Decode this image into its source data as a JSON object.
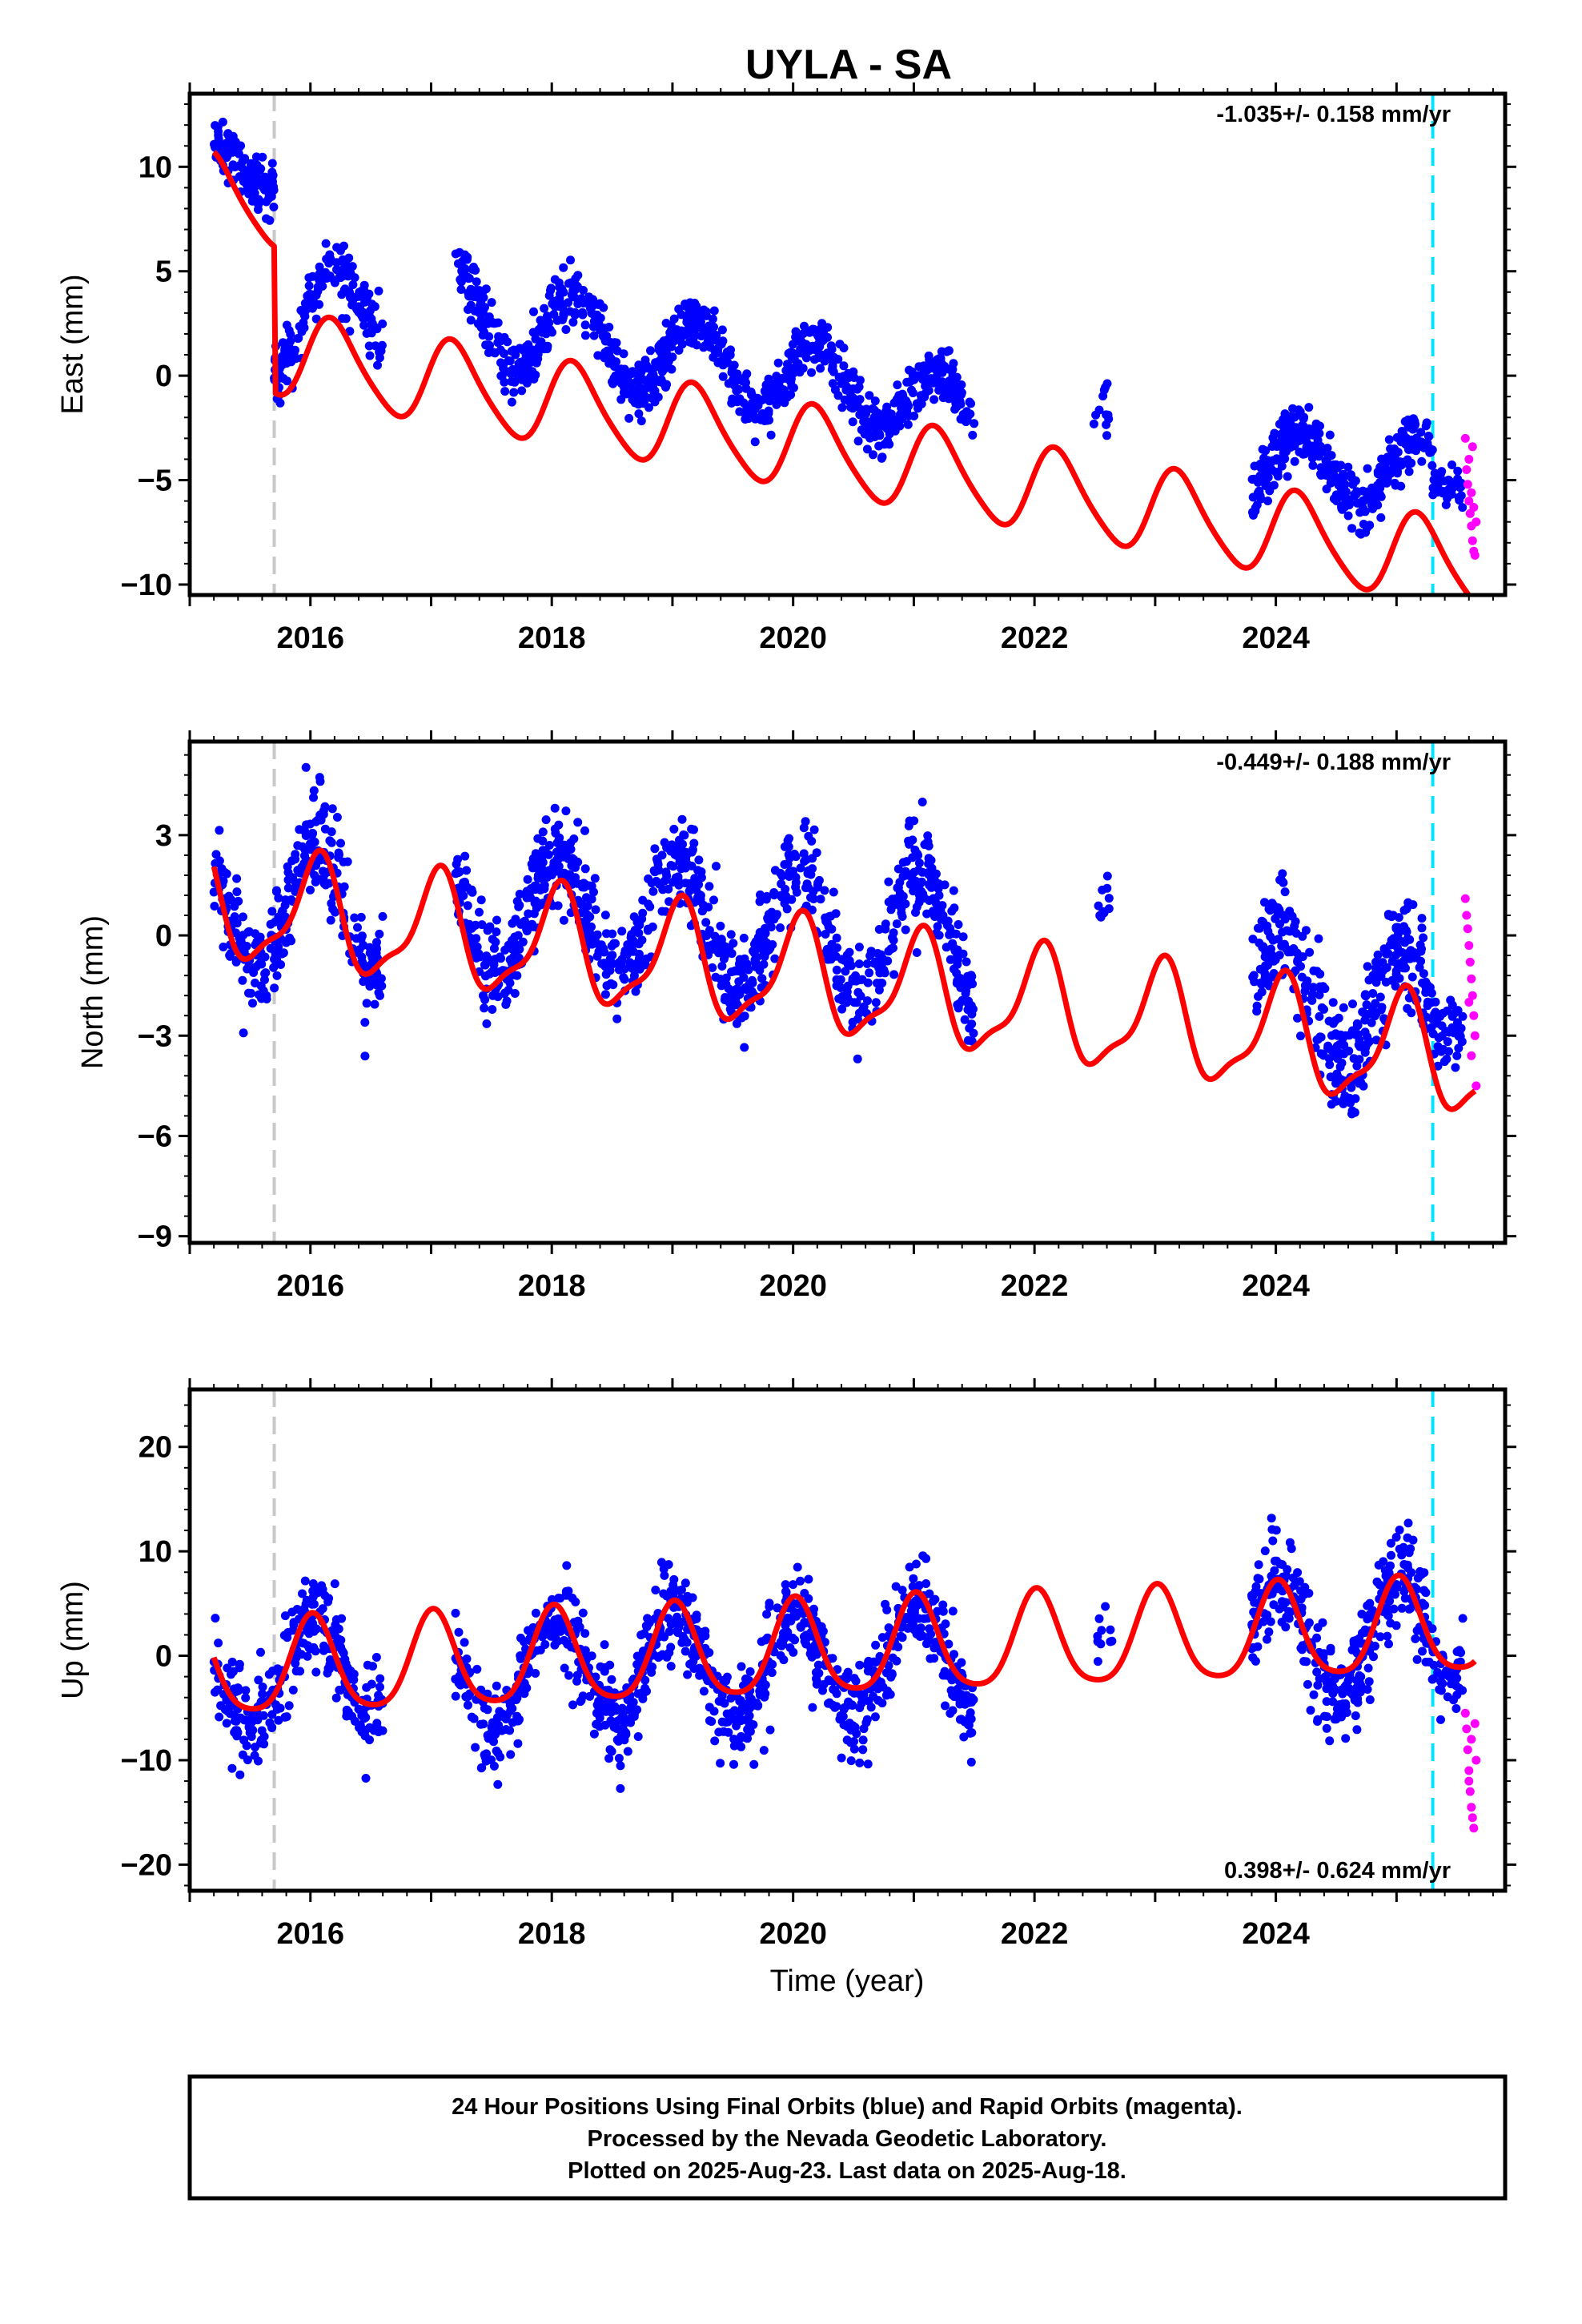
{
  "chart_data": [
    {
      "type": "scatter",
      "panel": "east",
      "title": "UYLA - SA",
      "ylabel": "East (mm)",
      "rate_label": "-1.035+/- 0.158 mm/yr",
      "ylim": [
        -10.5,
        13.5
      ],
      "yticks": [
        10,
        5,
        0,
        -5,
        -10
      ],
      "xlim": [
        2015.0,
        2025.9
      ],
      "xticks": [
        "2016",
        "2018",
        "2020",
        "2022",
        "2024"
      ],
      "markers": {
        "equipment_change": 2015.7,
        "rapid_start": 2025.3
      },
      "series": [
        {
          "color": "#0000ff",
          "segments": [
            {
              "start": 2015.2,
              "end": 2015.7,
              "a": 10.0,
              "b": 1.4,
              "amp": 1.4,
              "noise": 1.2,
              "n": 120
            },
            {
              "start": 2015.7,
              "end": 2016.6,
              "a": 2.8,
              "b": 1.2,
              "amp": 2.0,
              "noise": 1.4,
              "n": 180
            },
            {
              "start": 2017.2,
              "end": 2018.1,
              "a": 2.5,
              "b": -1.3,
              "amp": 2.1,
              "noise": 1.3,
              "n": 200
            },
            {
              "start": 2018.1,
              "end": 2019.0,
              "a": 1.5,
              "b": -1.2,
              "amp": 2.0,
              "noise": 1.3,
              "n": 200
            },
            {
              "start": 2019.0,
              "end": 2020.0,
              "a": 0.5,
              "b": -1.1,
              "amp": 1.8,
              "noise": 1.2,
              "n": 210
            },
            {
              "start": 2020.0,
              "end": 2021.0,
              "a": -0.5,
              "b": -1.0,
              "amp": 1.8,
              "noise": 1.2,
              "n": 210
            },
            {
              "start": 2021.0,
              "end": 2021.5,
              "a": -1.5,
              "b": -0.8,
              "amp": 1.5,
              "noise": 1.1,
              "n": 110
            },
            {
              "start": 2022.48,
              "end": 2022.62,
              "a": -1.5,
              "b": 0,
              "amp": 0,
              "noise": 1.3,
              "n": 12
            },
            {
              "start": 2023.8,
              "end": 2024.5,
              "a": -4.5,
              "b": 0,
              "amp": 1.8,
              "noise": 1.2,
              "n": 170
            },
            {
              "start": 2024.5,
              "end": 2025.3,
              "a": -4.6,
              "b": -0.5,
              "amp": 1.6,
              "noise": 1.2,
              "n": 170
            },
            {
              "start": 2025.3,
              "end": 2025.55,
              "a": -5.5,
              "b": 0,
              "amp": 0,
              "noise": 0.9,
              "n": 40
            }
          ]
        },
        {
          "color": "#ff00ff",
          "points": [
            [
              2025.57,
              -3.0
            ],
            [
              2025.58,
              -4.5
            ],
            [
              2025.59,
              -5.2
            ],
            [
              2025.6,
              -6.0
            ],
            [
              2025.61,
              -6.6
            ],
            [
              2025.62,
              -7.2
            ],
            [
              2025.63,
              -7.9
            ],
            [
              2025.64,
              -8.4
            ],
            [
              2025.65,
              -8.6
            ],
            [
              2025.62,
              -5.6
            ],
            [
              2025.6,
              -4.0
            ],
            [
              2025.63,
              -3.4
            ],
            [
              2025.66,
              -7.0
            ],
            [
              2025.64,
              -6.3
            ]
          ]
        },
        {
          "color": "#ff0000",
          "curve": {
            "x0": 2015.2,
            "x1": 2025.65,
            "a": 8.6,
            "b": 1.2,
            "harm": [
              [
                2.0,
                0.35
              ],
              [
                0.3,
                0.25
              ]
            ],
            "steps": [
              [
                2015.7,
                -7.0
              ]
            ],
            "rate": -1.035
          }
        }
      ]
    },
    {
      "type": "scatter",
      "panel": "north",
      "ylabel": "North (mm)",
      "rate_label": "-0.449+/- 0.188 mm/yr",
      "ylim": [
        -9.2,
        5.8
      ],
      "yticks": [
        3,
        0,
        -3,
        -6,
        -9
      ],
      "xlim": [
        2015.0,
        2025.9
      ],
      "xticks": [
        "2016",
        "2018",
        "2020",
        "2022",
        "2024"
      ],
      "markers": {
        "equipment_change": 2015.7,
        "rapid_start": 2025.3
      },
      "series": [
        {
          "color": "#0000ff",
          "segments": [
            {
              "start": 2015.2,
              "end": 2016.6,
              "a": 0.9,
              "b": -0.2,
              "amp": 2.0,
              "noise": 1.4,
              "n": 300
            },
            {
              "start": 2017.2,
              "end": 2019.0,
              "a": 0.6,
              "b": 0,
              "amp": 1.7,
              "noise": 1.3,
              "n": 400
            },
            {
              "start": 2019.0,
              "end": 2021.5,
              "a": 0.1,
              "b": -0.2,
              "amp": 1.8,
              "noise": 1.4,
              "n": 540
            },
            {
              "start": 2022.52,
              "end": 2022.62,
              "a": 1.0,
              "b": 0,
              "amp": 0,
              "noise": 0.8,
              "n": 10
            },
            {
              "start": 2023.8,
              "end": 2025.3,
              "a": -2.0,
              "b": -0.5,
              "amp": 1.8,
              "noise": 1.5,
              "n": 340
            },
            {
              "start": 2025.3,
              "end": 2025.55,
              "a": -3.0,
              "b": 0,
              "amp": 0,
              "noise": 1.0,
              "n": 40
            }
          ]
        },
        {
          "color": "#ff00ff",
          "points": [
            [
              2025.57,
              1.1
            ],
            [
              2025.58,
              0.6
            ],
            [
              2025.59,
              0.2
            ],
            [
              2025.6,
              -0.3
            ],
            [
              2025.61,
              -0.8
            ],
            [
              2025.62,
              -1.3
            ],
            [
              2025.63,
              -1.8
            ],
            [
              2025.64,
              -2.4
            ],
            [
              2025.65,
              -3.0
            ],
            [
              2025.62,
              -3.6
            ],
            [
              2025.66,
              -4.5
            ],
            [
              2025.6,
              -2.0
            ]
          ]
        },
        {
          "color": "#ff0000",
          "curve": {
            "x0": 2015.2,
            "x1": 2025.65,
            "a": 0.9,
            "b": 0.2,
            "harm": [
              [
                1.6,
                1.25
              ],
              [
                0.5,
                0.2
              ]
            ],
            "steps": [],
            "rate": -0.449
          }
        }
      ]
    },
    {
      "type": "scatter",
      "panel": "up",
      "ylabel": "Up (mm)",
      "rate_label": "0.398+/- 0.624 mm/yr",
      "xlabel": "Time (year)",
      "ylim": [
        -22.5,
        25.5
      ],
      "yticks": [
        20,
        10,
        0,
        -10,
        -20
      ],
      "xlim": [
        2015.0,
        2025.9
      ],
      "xticks": [
        "2016",
        "2018",
        "2020",
        "2022",
        "2024"
      ],
      "markers": {
        "equipment_change": 2015.7,
        "rapid_start": 2025.3
      },
      "series": [
        {
          "color": "#0000ff",
          "segments": [
            {
              "start": 2015.2,
              "end": 2016.6,
              "a": -1.5,
              "b": 0.6,
              "amp": 5.0,
              "noise": 4.0,
              "n": 300
            },
            {
              "start": 2017.2,
              "end": 2019.0,
              "a": -1.5,
              "b": 0.6,
              "amp": 5.3,
              "noise": 4.0,
              "n": 400
            },
            {
              "start": 2019.0,
              "end": 2021.5,
              "a": -0.8,
              "b": 0.5,
              "amp": 5.3,
              "noise": 4.0,
              "n": 540
            },
            {
              "start": 2022.52,
              "end": 2022.65,
              "a": 2.5,
              "b": 0,
              "amp": 0,
              "noise": 3.5,
              "n": 10
            },
            {
              "start": 2023.8,
              "end": 2025.3,
              "a": 2.0,
              "b": 0.3,
              "amp": 5.5,
              "noise": 4.5,
              "n": 340
            },
            {
              "start": 2025.3,
              "end": 2025.55,
              "a": -2.0,
              "b": 0,
              "amp": 0,
              "noise": 3.5,
              "n": 40
            }
          ]
        },
        {
          "color": "#ff00ff",
          "points": [
            [
              2025.57,
              -5.5
            ],
            [
              2025.58,
              -7.0
            ],
            [
              2025.59,
              -9.0
            ],
            [
              2025.6,
              -11.0
            ],
            [
              2025.61,
              -13.0
            ],
            [
              2025.62,
              -14.5
            ],
            [
              2025.63,
              -15.5
            ],
            [
              2025.64,
              -16.5
            ],
            [
              2025.65,
              -6.5
            ],
            [
              2025.62,
              -8.0
            ],
            [
              2025.6,
              -12.0
            ],
            [
              2025.66,
              -10.0
            ]
          ]
        },
        {
          "color": "#ff0000",
          "curve": {
            "x0": 2015.2,
            "x1": 2025.65,
            "a": -1.5,
            "b": 0.9,
            "harm": [
              [
                4.5,
                1.45
              ],
              [
                0.8,
                1.4
              ]
            ],
            "steps": [],
            "rate": 0.398
          }
        }
      ]
    }
  ],
  "footer": {
    "line1": "24 Hour Positions Using Final Orbits (blue) and Rapid Orbits (magenta).",
    "line2": "Processed by the Nevada Geodetic Laboratory.",
    "line3": "Plotted on 2025-Aug-23. Last data on 2025-Aug-18."
  }
}
